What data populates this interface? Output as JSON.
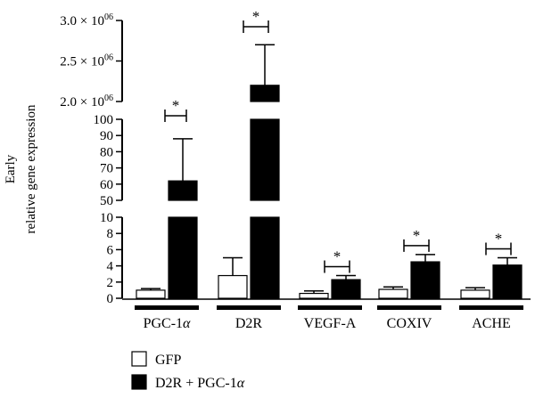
{
  "chart_data": {
    "type": "bar",
    "ylabel": [
      "Early",
      "relative gene expression"
    ],
    "categories": [
      "PGC-1α",
      "D2R",
      "VEGF-A",
      "COXIV",
      "ACHE"
    ],
    "series": [
      {
        "name": "GFP",
        "values": [
          1.0,
          2.8,
          0.6,
          1.1,
          1.0
        ],
        "errors": [
          0.2,
          2.2,
          0.3,
          0.3,
          0.3
        ],
        "color": "#ffffff"
      },
      {
        "name": "D2R + PGC-1α",
        "values": [
          62,
          2200000,
          2.3,
          4.5,
          4.1
        ],
        "errors": [
          26,
          500000,
          0.5,
          0.9,
          0.9
        ],
        "color": "#000000"
      }
    ],
    "axis_segments": [
      {
        "ylim": [
          0,
          10
        ],
        "ticks": [
          "0",
          "2",
          "4",
          "6",
          "8",
          "10"
        ],
        "tick_values": [
          0,
          2,
          4,
          6,
          8,
          10
        ]
      },
      {
        "ylim": [
          50,
          100
        ],
        "ticks": [
          "50",
          "60",
          "70",
          "80",
          "90",
          "100"
        ],
        "tick_values": [
          50,
          60,
          70,
          80,
          90,
          100
        ]
      },
      {
        "ylim": [
          2000000,
          3000000
        ],
        "ticks": [
          "2.0 × 10^06",
          "2.5 × 10^06",
          "3.0 × 10^06"
        ],
        "tick_values": [
          2000000,
          2500000,
          3000000
        ]
      }
    ],
    "significance": [
      "*",
      "*",
      "*",
      "*",
      "*"
    ],
    "legend_position": "bottom-left",
    "grid": false
  }
}
